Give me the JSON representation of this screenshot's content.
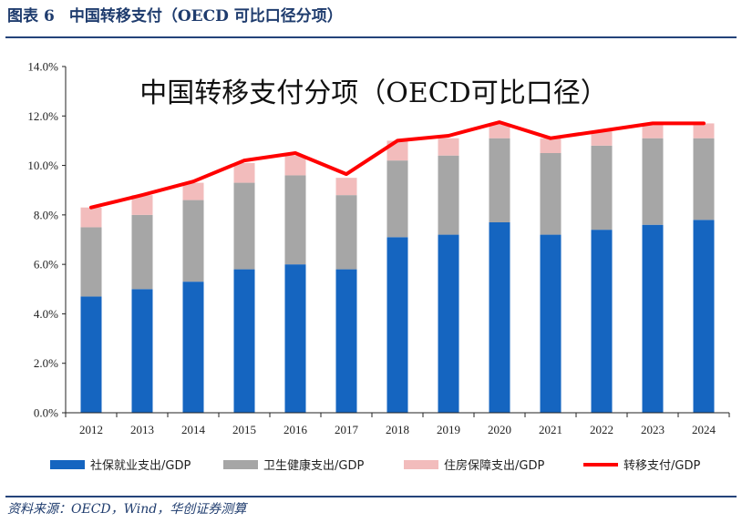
{
  "caption": {
    "label": "图表",
    "number": "6",
    "text": "中国转移支付（OECD 可比口径分项）"
  },
  "source": "资料来源：OECD，Wind，华创证券测算",
  "chart_data": {
    "type": "bar",
    "stacked": true,
    "title": "中国转移支付分项（OECD可比口径）",
    "xlabel": "",
    "ylabel": "",
    "categories": [
      "2012",
      "2013",
      "2014",
      "2015",
      "2016",
      "2017",
      "2018",
      "2019",
      "2020",
      "2021",
      "2022",
      "2023",
      "2024"
    ],
    "ylim": [
      0,
      14
    ],
    "yticks": [
      "0.0%",
      "2.0%",
      "4.0%",
      "6.0%",
      "8.0%",
      "10.0%",
      "12.0%",
      "14.0%"
    ],
    "grid": false,
    "legend_position": "bottom",
    "series": [
      {
        "name": "社保就业支出/GDP",
        "kind": "bar",
        "color": "#1565c0",
        "values": [
          4.7,
          5.0,
          5.3,
          5.8,
          6.0,
          5.8,
          7.1,
          7.2,
          7.7,
          7.2,
          7.4,
          7.6,
          7.8
        ]
      },
      {
        "name": "卫生健康支出/GDP",
        "kind": "bar",
        "color": "#a6a6a6",
        "values": [
          2.8,
          3.0,
          3.3,
          3.5,
          3.6,
          3.0,
          3.1,
          3.2,
          3.4,
          3.3,
          3.4,
          3.5,
          3.3
        ]
      },
      {
        "name": "住房保障支出/GDP",
        "kind": "bar",
        "color": "#f2bcbc",
        "values": [
          0.8,
          0.8,
          0.7,
          0.8,
          0.8,
          0.7,
          0.8,
          0.7,
          0.6,
          0.6,
          0.6,
          0.6,
          0.6
        ]
      },
      {
        "name": "转移支付/GDP",
        "kind": "line",
        "color": "#ff0000",
        "values": [
          8.3,
          8.8,
          9.35,
          10.2,
          10.5,
          9.65,
          11.0,
          11.2,
          11.75,
          11.1,
          11.4,
          11.7,
          11.7
        ]
      }
    ]
  }
}
